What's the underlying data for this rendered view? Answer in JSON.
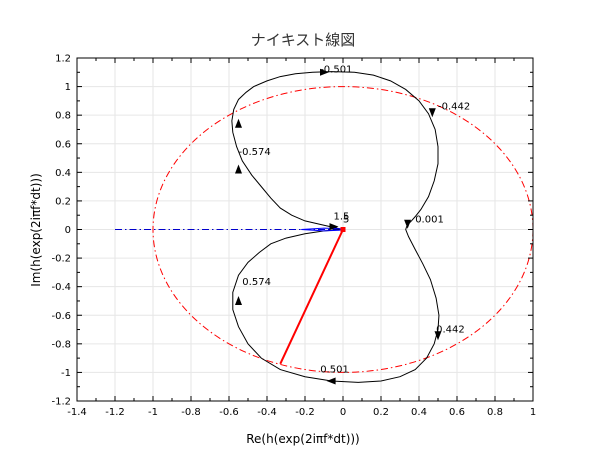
{
  "chart_data": {
    "type": "line",
    "title": "ナイキスト線図",
    "xlabel": "Re(h(exp(2iπf*dt)))",
    "ylabel": "Im(h(exp(2iπf*dt)))",
    "xlim": [
      -1.4,
      1.0
    ],
    "ylim": [
      -1.2,
      1.2
    ],
    "xticks": [
      "-1.4",
      "-1.2",
      "-1",
      "-0.8",
      "-0.6",
      "-0.4",
      "-0.2",
      "0",
      "0.2",
      "0.4",
      "0.6",
      "0.8",
      "1"
    ],
    "yticks": [
      "-1.2",
      "-1",
      "-0.8",
      "-0.6",
      "-0.4",
      "-0.2",
      "0",
      "0.2",
      "0.4",
      "0.6",
      "0.8",
      "1",
      "1.2"
    ],
    "grid": true,
    "colors": {
      "curve": "#000000",
      "unit_circle": "#ff0000",
      "reference_line": "#0000cc",
      "margin_vector": "#ff0000",
      "small_loop": "#0000ff"
    },
    "series": [
      {
        "x": [
          0,
          -0.1,
          -0.2,
          -0.27,
          -0.33,
          -0.38,
          -0.43,
          -0.48,
          -0.53,
          -0.56,
          -0.58,
          -0.585,
          -0.575,
          -0.55,
          -0.51,
          -0.47,
          -0.4,
          -0.33,
          -0.25,
          -0.16,
          -0.06,
          0.06,
          0.16,
          0.25,
          0.33,
          0.4,
          0.45,
          0.485,
          0.5,
          0.5,
          0.48,
          0.45,
          0.41,
          0.38,
          0.36,
          0.345,
          0.335,
          0.33,
          0.345,
          0.38,
          0.42,
          0.46,
          0.49,
          0.505,
          0.5,
          0.48,
          0.44,
          0.38,
          0.3,
          0.2,
          0.08,
          -0.06,
          -0.2,
          -0.33,
          -0.43,
          -0.5,
          -0.55,
          -0.58,
          -0.58,
          -0.55,
          -0.5,
          -0.44,
          -0.38,
          -0.3,
          -0.2,
          -0.1,
          0
        ],
        "y": [
          0,
          0.03,
          0.06,
          0.1,
          0.15,
          0.22,
          0.3,
          0.38,
          0.48,
          0.58,
          0.68,
          0.76,
          0.84,
          0.91,
          0.96,
          1.0,
          1.04,
          1.07,
          1.09,
          1.1,
          1.105,
          1.1,
          1.08,
          1.04,
          0.98,
          0.9,
          0.81,
          0.7,
          0.58,
          0.46,
          0.34,
          0.23,
          0.14,
          0.09,
          0.06,
          0.04,
          0.02,
          0,
          -0.05,
          -0.14,
          -0.24,
          -0.35,
          -0.48,
          -0.6,
          -0.7,
          -0.8,
          -0.9,
          -0.98,
          -1.03,
          -1.06,
          -1.07,
          -1.06,
          -1.03,
          -0.98,
          -0.9,
          -0.8,
          -0.68,
          -0.56,
          -0.44,
          -0.32,
          -0.23,
          -0.16,
          -0.1,
          -0.06,
          -0.03,
          -0.01,
          0
        ]
      },
      {
        "x": [
          -0.22,
          -0.1,
          -0.02,
          0.0,
          -0.02,
          -0.1,
          -0.22
        ],
        "y": [
          0.0,
          0.01,
          0.005,
          0.0,
          -0.005,
          -0.01,
          0.0
        ]
      }
    ],
    "unit_circle": {
      "center": [
        0,
        0
      ],
      "radius": 1
    },
    "reference_line": {
      "x": [
        -1.2,
        0
      ],
      "y": [
        0,
        0
      ]
    },
    "margin_vector": {
      "x": [
        0,
        -0.33
      ],
      "y": [
        0,
        -0.94
      ]
    },
    "arrows": [
      {
        "x": -0.1,
        "y": 1.1,
        "direction": "right"
      },
      {
        "x": 0.47,
        "y": 0.82,
        "direction": "down"
      },
      {
        "x": 0.34,
        "y": 0.04,
        "direction": "down"
      },
      {
        "x": 0.5,
        "y": -0.74,
        "direction": "down"
      },
      {
        "x": -0.06,
        "y": -1.06,
        "direction": "left"
      },
      {
        "x": -0.55,
        "y": -0.5,
        "direction": "up"
      },
      {
        "x": -0.55,
        "y": 0.42,
        "direction": "up"
      },
      {
        "x": -0.55,
        "y": 0.74,
        "direction": "up"
      },
      {
        "x": -0.05,
        "y": 0.02,
        "direction": "right"
      }
    ],
    "annotations": [
      {
        "text": "-0.501",
        "x": -0.12,
        "y": 1.1
      },
      {
        "text": "-0.442",
        "x": 0.5,
        "y": 0.84
      },
      {
        "text": "-0.574",
        "x": -0.55,
        "y": 0.52
      },
      {
        "text": "1.5",
        "x": -0.05,
        "y": 0.07
      },
      {
        "text": "5",
        "x": 0.0,
        "y": 0.05
      },
      {
        "text": "0.001",
        "x": 0.38,
        "y": 0.05
      },
      {
        "text": "0.574",
        "x": -0.53,
        "y": -0.39
      },
      {
        "text": "0.442",
        "x": 0.49,
        "y": -0.72
      },
      {
        "text": "0.501",
        "x": -0.12,
        "y": -1.0
      }
    ]
  }
}
